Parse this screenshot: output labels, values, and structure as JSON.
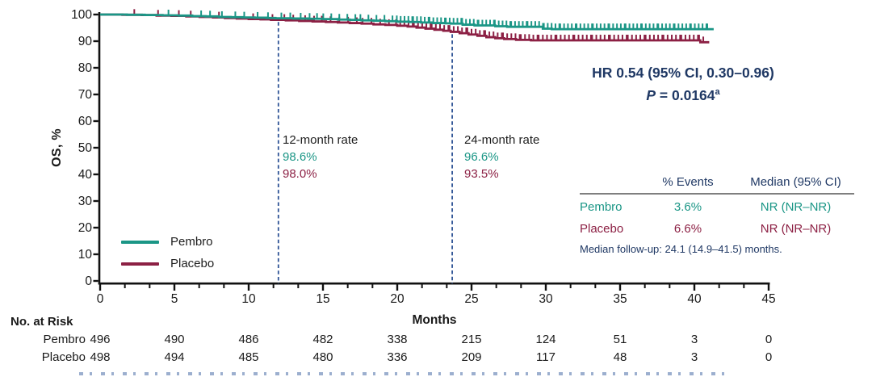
{
  "chart_data": {
    "type": "line",
    "subtype": "kaplan-meier-step-curve",
    "title": "",
    "xlabel": "Months",
    "ylabel": "OS, %",
    "xlim": [
      0,
      45
    ],
    "ylim": [
      0,
      100
    ],
    "x_ticks": [
      0,
      5,
      10,
      15,
      20,
      25,
      30,
      35,
      40,
      45
    ],
    "y_ticks": [
      0,
      10,
      20,
      30,
      40,
      50,
      60,
      70,
      80,
      90,
      100
    ],
    "grid": false,
    "legend_position": "inside-lower-left",
    "axis_color": "#111111",
    "reference_line_color": "#2F5496",
    "reference_lines": [
      {
        "x": 12,
        "v_top": 97.2,
        "style": "dashed"
      },
      {
        "x": 23.7,
        "v_top": 92.6,
        "style": "dashed"
      }
    ],
    "series": [
      {
        "name": "Placebo",
        "color": "#8C2044",
        "steps": [
          [
            0,
            100
          ],
          [
            1.5,
            99.9
          ],
          [
            2.8,
            99.8
          ],
          [
            3.8,
            99.6
          ],
          [
            4.8,
            99.5
          ],
          [
            5.8,
            99.3
          ],
          [
            6.7,
            99.1
          ],
          [
            7.6,
            98.9
          ],
          [
            8.4,
            98.7
          ],
          [
            9.2,
            98.5
          ],
          [
            10.0,
            98.3
          ],
          [
            10.8,
            98.2
          ],
          [
            11.5,
            98.0
          ],
          [
            12.5,
            97.8
          ],
          [
            13.4,
            97.6
          ],
          [
            14.3,
            97.4
          ],
          [
            15.2,
            97.2
          ],
          [
            16.0,
            97.0
          ],
          [
            16.8,
            96.8
          ],
          [
            17.6,
            96.6
          ],
          [
            18.4,
            96.3
          ],
          [
            19.2,
            96.1
          ],
          [
            20.0,
            95.8
          ],
          [
            20.7,
            95.5
          ],
          [
            21.3,
            95.1
          ],
          [
            21.9,
            94.7
          ],
          [
            22.5,
            94.3
          ],
          [
            23.1,
            93.9
          ],
          [
            23.6,
            93.5
          ],
          [
            24.2,
            93.0
          ],
          [
            24.8,
            92.5
          ],
          [
            25.4,
            92.0
          ],
          [
            26.0,
            91.5
          ],
          [
            26.6,
            91.1
          ],
          [
            27.2,
            90.8
          ],
          [
            28.0,
            90.5
          ],
          [
            29.0,
            90.3
          ],
          [
            40.2,
            90.3
          ],
          [
            40.4,
            89.6
          ],
          [
            41.0,
            89.6
          ]
        ],
        "censors_early": [
          2.3,
          3.9,
          5.3,
          6.1,
          8.0,
          10.3,
          11.6,
          12.4,
          13.0,
          13.8,
          14.4
        ],
        "censor_bands": [
          {
            "from": 15.0,
            "to": 19.8,
            "step": 0.55
          },
          {
            "from": 20.0,
            "to": 40.7,
            "step": 0.24
          }
        ]
      },
      {
        "name": "Pembro",
        "color": "#1B9686",
        "steps": [
          [
            0,
            100
          ],
          [
            1.8,
            99.9
          ],
          [
            3.0,
            99.8
          ],
          [
            4.2,
            99.7
          ],
          [
            5.3,
            99.6
          ],
          [
            6.2,
            99.4
          ],
          [
            7.1,
            99.3
          ],
          [
            8.0,
            99.1
          ],
          [
            8.8,
            99.0
          ],
          [
            9.6,
            98.9
          ],
          [
            10.4,
            98.8
          ],
          [
            11.2,
            98.7
          ],
          [
            11.8,
            98.6
          ],
          [
            13.0,
            98.5
          ],
          [
            14.0,
            98.4
          ],
          [
            15.0,
            98.3
          ],
          [
            16.0,
            98.1
          ],
          [
            16.8,
            98.0
          ],
          [
            17.6,
            97.8
          ],
          [
            18.4,
            97.7
          ],
          [
            19.2,
            97.5
          ],
          [
            20.0,
            97.3
          ],
          [
            20.8,
            97.2
          ],
          [
            21.6,
            97.0
          ],
          [
            22.4,
            96.8
          ],
          [
            23.2,
            96.7
          ],
          [
            23.6,
            96.6
          ],
          [
            24.4,
            96.2
          ],
          [
            25.2,
            95.9
          ],
          [
            26.6,
            95.6
          ],
          [
            27.4,
            95.4
          ],
          [
            29.8,
            94.7
          ],
          [
            30.4,
            94.5
          ],
          [
            41.3,
            94.5
          ]
        ],
        "censors_early": [
          4.6,
          6.8,
          7.4,
          8.2,
          9.1,
          9.7,
          10.6,
          11.3,
          12.2,
          12.8,
          13.5,
          14.1,
          14.6
        ],
        "censor_bands": [
          {
            "from": 15.1,
            "to": 19.9,
            "step": 0.5
          },
          {
            "from": 20.05,
            "to": 41.1,
            "step": 0.22
          }
        ]
      }
    ],
    "rate_annotations": [
      {
        "label": "12-month rate",
        "pembro": "98.6%",
        "placebo": "98.0%"
      },
      {
        "label": "24-month rate",
        "pembro": "96.6%",
        "placebo": "93.5%"
      }
    ]
  },
  "stats": {
    "hr": "HR 0.54 (95% CI, 0.30–0.96)",
    "p_label": "P",
    "p_value": "= 0.0164",
    "p_sup": "a",
    "color": "#1F3864"
  },
  "legend": {
    "items": [
      {
        "label": "Pembro"
      },
      {
        "label": "Placebo"
      }
    ]
  },
  "summary_table": {
    "headers": {
      "events": "% Events",
      "median": "Median (95% CI)"
    },
    "header_color": "#1F3864",
    "rows": [
      {
        "name": "Pembro",
        "events": "3.6%",
        "median": "NR (NR–NR)"
      },
      {
        "name": "Placebo",
        "events": "6.6%",
        "median": "NR (NR–NR)"
      }
    ],
    "followup_note": "Median follow-up: 24.1 (14.9–41.5) months."
  },
  "at_risk": {
    "title": "No. at Risk",
    "months": [
      0,
      5,
      10,
      15,
      20,
      25,
      30,
      35,
      40,
      45
    ],
    "rows": [
      {
        "name": "Pembro",
        "counts": [
          496,
          490,
          486,
          482,
          338,
          215,
          124,
          51,
          3,
          0
        ]
      },
      {
        "name": "Placebo",
        "counts": [
          498,
          494,
          485,
          480,
          336,
          209,
          117,
          48,
          3,
          0
        ]
      }
    ]
  },
  "footnote": {
    "clipped": true
  }
}
